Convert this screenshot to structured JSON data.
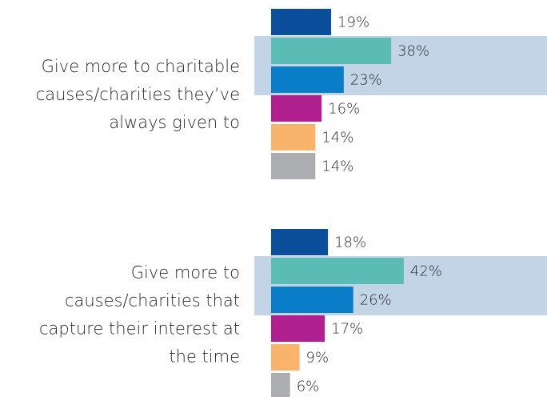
{
  "chart_data": {
    "type": "bar",
    "orientation": "horizontal",
    "categories": [
      [
        "Give more to charitable",
        "causes/charities they’ve",
        "always given to"
      ],
      [
        "Give more to",
        "causes/charities that",
        "capture their interest at",
        "the time"
      ]
    ],
    "series": [
      {
        "color": "#0b4f9c",
        "values": [
          19,
          18
        ],
        "value_labels": [
          "19%",
          "18%"
        ]
      },
      {
        "color": "#5bbcb5",
        "values": [
          38,
          42
        ],
        "value_labels": [
          "38%",
          "42%"
        ]
      },
      {
        "color": "#0a7dc8",
        "values": [
          23,
          26
        ],
        "value_labels": [
          "23%",
          "26%"
        ]
      },
      {
        "color": "#b0208f",
        "values": [
          16,
          17
        ],
        "value_labels": [
          "16%",
          "17%"
        ]
      },
      {
        "color": "#f9b36b",
        "values": [
          14,
          9
        ],
        "value_labels": [
          "14%",
          "9%"
        ]
      },
      {
        "color": "#abadb1",
        "values": [
          14,
          6
        ],
        "value_labels": [
          "14%",
          "6%"
        ]
      }
    ]
  }
}
